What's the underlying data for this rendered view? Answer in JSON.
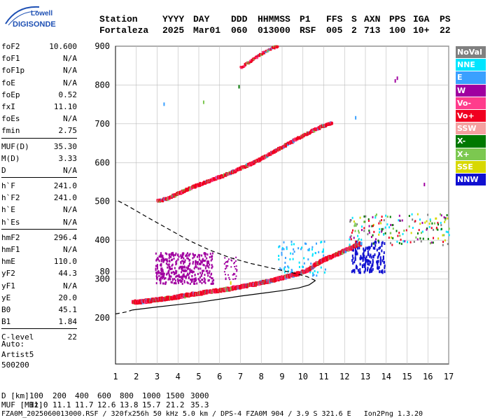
{
  "logo": {
    "line1": "Lowell",
    "line2": "DIGISONDE"
  },
  "header": {
    "labels": [
      "Station",
      "YYYY",
      "DAY",
      "DDD",
      "HHMMSS",
      "P1",
      "FFS",
      "S",
      "AXN",
      "PPS",
      "IGA",
      "PS"
    ],
    "values": [
      "Fortaleza",
      "2025",
      "Mar01",
      "060",
      "013000",
      "RSF",
      "005",
      "2",
      "713",
      "100",
      "10+",
      "22"
    ]
  },
  "params": [
    [
      {
        "k": "foF2",
        "v": "10.600"
      },
      {
        "k": "foF1",
        "v": "N/A"
      },
      {
        "k": "foF1p",
        "v": "N/A"
      },
      {
        "k": "foE",
        "v": "N/A"
      },
      {
        "k": "foEp",
        "v": "0.52"
      },
      {
        "k": "fxI",
        "v": "11.10"
      },
      {
        "k": "foEs",
        "v": "N/A"
      },
      {
        "k": "fmin",
        "v": "2.75"
      }
    ],
    [
      {
        "k": "MUF(D)",
        "v": "35.30"
      },
      {
        "k": "M(D)",
        "v": "3.33"
      },
      {
        "k": "D",
        "v": "N/A"
      }
    ],
    [
      {
        "k": "h`F",
        "v": "241.0"
      },
      {
        "k": "h`F2",
        "v": "241.0"
      },
      {
        "k": "h`E",
        "v": "N/A"
      },
      {
        "k": "h`Es",
        "v": "N/A"
      }
    ],
    [
      {
        "k": "hmF2",
        "v": "296.4"
      },
      {
        "k": "hmF1",
        "v": "N/A"
      },
      {
        "k": "hmE",
        "v": "110.0"
      },
      {
        "k": "yF2",
        "v": "44.3"
      },
      {
        "k": "yF1",
        "v": "N/A"
      },
      {
        "k": "yE",
        "v": "20.0"
      },
      {
        "k": "B0",
        "v": "45.1"
      },
      {
        "k": "B1",
        "v": "1.84"
      }
    ],
    [
      {
        "k": "C-level",
        "v": "22"
      }
    ]
  ],
  "auto": {
    "l1": "Auto:",
    "l2": "Artist5",
    "l3": "500200"
  },
  "legend": [
    {
      "label": "NoVal",
      "color": "#808080"
    },
    {
      "label": "NNE",
      "color": "#00e5ff"
    },
    {
      "label": "E",
      "color": "#3aa0ff"
    },
    {
      "label": "W",
      "color": "#a000a0"
    },
    {
      "label": "Vo-",
      "color": "#ff3c8c"
    },
    {
      "label": "Vo+",
      "color": "#f00020"
    },
    {
      "label": "SSW",
      "color": "#f5a0a0"
    },
    {
      "label": "X-",
      "color": "#007800"
    },
    {
      "label": "X+",
      "color": "#7cc850"
    },
    {
      "label": "SSE",
      "color": "#d8d800"
    },
    {
      "label": "NNW",
      "color": "#1010d0"
    }
  ],
  "chart_data": {
    "type": "scatter",
    "x_ticks": [
      1,
      2,
      3,
      4,
      5,
      6,
      7,
      8,
      9,
      10,
      11,
      12,
      13,
      14,
      15,
      16,
      17
    ],
    "y_ticks": [
      80,
      200,
      300,
      400,
      500,
      600,
      700,
      800,
      900
    ],
    "xlim": [
      1,
      17
    ],
    "ylim": [
      80,
      900
    ],
    "grid": true,
    "traces": {
      "f2_trace": [
        [
          1.8,
          240
        ],
        [
          2.5,
          243
        ],
        [
          3.0,
          247
        ],
        [
          3.5,
          250
        ],
        [
          4.0,
          254
        ],
        [
          4.5,
          259
        ],
        [
          5.0,
          263
        ],
        [
          5.5,
          267
        ],
        [
          6.0,
          271
        ],
        [
          6.5,
          275
        ],
        [
          7.0,
          280
        ],
        [
          7.5,
          285
        ],
        [
          8.0,
          290
        ],
        [
          8.5,
          296
        ],
        [
          9.0,
          303
        ],
        [
          9.5,
          310
        ],
        [
          10.0,
          318
        ],
        [
          10.3,
          325
        ],
        [
          10.6,
          338
        ],
        [
          11.0,
          350
        ],
        [
          11.5,
          360
        ],
        [
          12.0,
          373
        ],
        [
          12.5,
          385
        ],
        [
          12.8,
          392
        ]
      ],
      "f2_second_hop": [
        [
          3.0,
          500
        ],
        [
          3.5,
          508
        ],
        [
          4.0,
          520
        ],
        [
          4.5,
          532
        ],
        [
          5.0,
          543
        ],
        [
          5.5,
          553
        ],
        [
          6.0,
          563
        ],
        [
          6.5,
          573
        ],
        [
          7.0,
          585
        ],
        [
          7.5,
          597
        ],
        [
          8.0,
          610
        ],
        [
          8.5,
          625
        ],
        [
          9.0,
          640
        ],
        [
          9.5,
          655
        ],
        [
          10.0,
          670
        ],
        [
          10.5,
          683
        ],
        [
          11.0,
          695
        ],
        [
          11.4,
          702
        ]
      ],
      "f2_third_hop": [
        [
          7.0,
          845
        ],
        [
          7.5,
          862
        ],
        [
          8.0,
          880
        ],
        [
          8.5,
          895
        ],
        [
          8.8,
          900
        ]
      ],
      "profile_solid": [
        [
          1.8,
          220
        ],
        [
          3.0,
          228
        ],
        [
          4.0,
          234
        ],
        [
          5.0,
          240
        ],
        [
          6.0,
          248
        ],
        [
          7.0,
          256
        ],
        [
          8.0,
          263
        ],
        [
          9.0,
          270
        ],
        [
          9.8,
          277
        ],
        [
          10.3,
          285
        ],
        [
          10.6,
          296
        ]
      ],
      "profile_dashed_lower": [
        [
          1.0,
          210
        ],
        [
          1.5,
          215
        ],
        [
          1.8,
          220
        ]
      ],
      "profile_dashed_upper": [
        [
          10.6,
          296
        ],
        [
          10.2,
          306
        ],
        [
          9.5,
          316
        ],
        [
          8.5,
          328
        ],
        [
          7.5,
          340
        ],
        [
          6.5,
          355
        ],
        [
          5.5,
          375
        ],
        [
          4.5,
          400
        ],
        [
          3.5,
          430
        ],
        [
          2.5,
          460
        ],
        [
          1.7,
          485
        ],
        [
          1.0,
          505
        ]
      ],
      "w_cloud": {
        "x_range": [
          2.9,
          5.7
        ],
        "y_range": [
          290,
          370
        ]
      },
      "nnw_cluster": {
        "x_range": [
          12.3,
          13.9
        ],
        "y_range": [
          320,
          400
        ]
      },
      "spread_f": {
        "x_range": [
          12.2,
          17
        ],
        "y_range": [
          390,
          470
        ]
      }
    },
    "bottom_axis": {
      "d_label": "D",
      "d_values": [
        "100",
        "200",
        "400",
        "600",
        "800",
        "1000",
        "1500",
        "3000"
      ],
      "d_unit": "[km]",
      "muf_label": "MUF",
      "muf_values": [
        "11.0",
        "11.1",
        "11.7",
        "12.6",
        "13.8",
        "15.7",
        "21.2",
        "35.3"
      ],
      "muf_unit": "[MHz]"
    }
  },
  "footer": "FZA0M_2025060013000.RSF / 320fx256h 50 kHz 5.0 km / DPS-4 FZA0M 904 / 3.9 S 321.6 E   Ion2Png 1.3.20"
}
